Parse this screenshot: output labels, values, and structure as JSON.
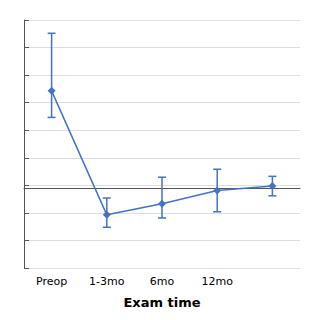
{
  "chart_data": {
    "type": "line",
    "xlabel": "Exam time",
    "categories": [
      "Preop",
      "1-3mo",
      "6mo",
      "12mo",
      null
    ],
    "values": [
      2.2,
      -0.6,
      -0.35,
      -0.05,
      0.05
    ],
    "error_upper": [
      1.3,
      0.38,
      0.6,
      0.48,
      0.22
    ],
    "error_lower": [
      0.6,
      0.28,
      0.32,
      0.48,
      0.22
    ],
    "color": "#4472C4",
    "marker": "diamond",
    "ylim": [
      -1.8,
      3.8
    ],
    "yticks": [
      -1.8,
      -1.1777777777777778,
      -0.5555555555555556,
      0.0666666666666667,
      0.688888888888889,
      1.3111111111111111,
      1.9333333333333333,
      2.5555555555555554,
      3.177777777777778,
      3.8
    ],
    "grid": true,
    "tick_labels": "x"
  }
}
